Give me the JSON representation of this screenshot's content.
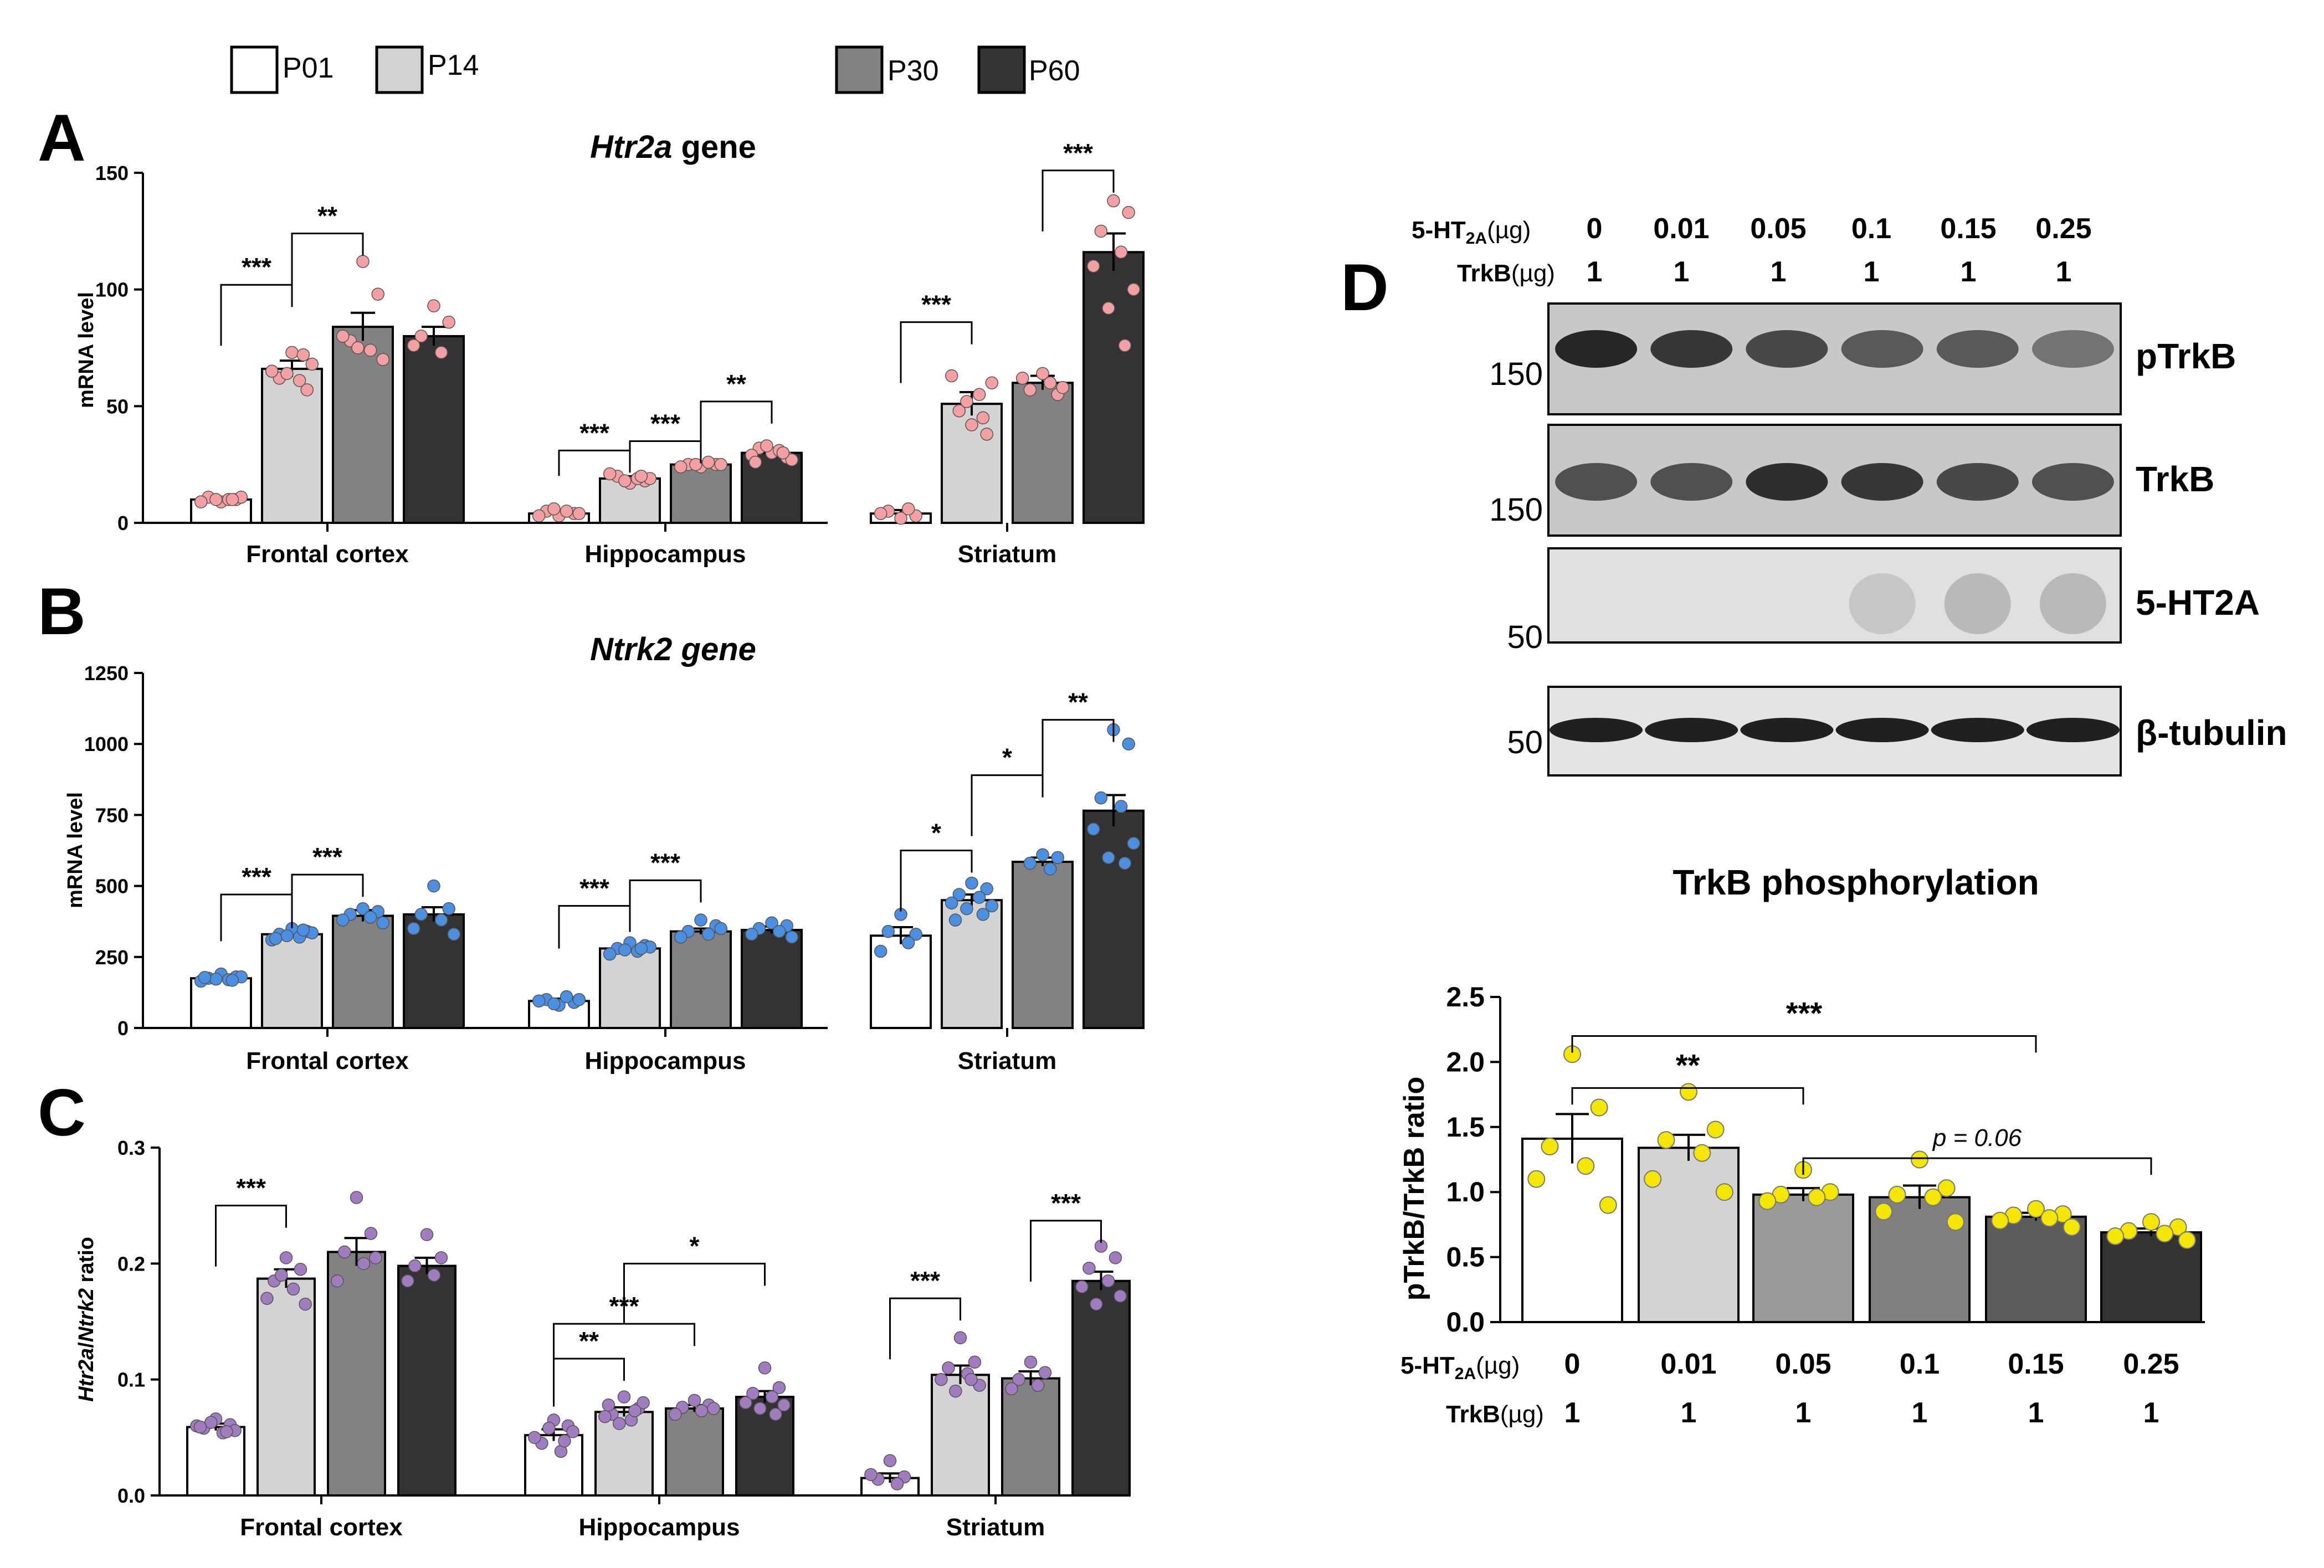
{
  "legend": {
    "groups": [
      {
        "label": "P01",
        "color": "#ffffff"
      },
      {
        "label": "P14",
        "color": "#d3d3d3"
      },
      {
        "label": "P30",
        "color": "#828282"
      },
      {
        "label": "P60",
        "color": "#333333"
      }
    ]
  },
  "chart_data": [
    {
      "panel": "A",
      "type": "bar",
      "title": "Htr2a gene",
      "title_italic": "Htr2a",
      "title_rest": " gene",
      "ylabel": "mRNA level",
      "ylim": [
        0,
        150
      ],
      "yticks": [
        0,
        50,
        100,
        150
      ],
      "dot_color": "#f4a0a3",
      "categories": [
        "Frontal cortex",
        "Hippocampus",
        "Striatum"
      ],
      "series": [
        {
          "name": "P01",
          "values": [
            10,
            4,
            4
          ],
          "errors": [
            1,
            1,
            1.5
          ],
          "points": [
            [
              9,
              10,
              11,
              10,
              9,
              11,
              10,
              10
            ],
            [
              3,
              4,
              5,
              5,
              3,
              4,
              6
            ],
            [
              2,
              3,
              5,
              6,
              4
            ]
          ]
        },
        {
          "name": "P14",
          "values": [
            66,
            19,
            51
          ],
          "errors": [
            3.5,
            1,
            5
          ],
          "points": [
            [
              73,
              57,
              62,
              61,
              65,
              68,
              64,
              72
            ],
            [
              17,
              18,
              20,
              19,
              21,
              19,
              18,
              20
            ],
            [
              42,
              38,
              48,
              55,
              63,
              60,
              52,
              45
            ]
          ]
        },
        {
          "name": "P30",
          "values": [
            84,
            25,
            60
          ],
          "errors": [
            6,
            0.5,
            3
          ],
          "points": [
            [
              112,
              98,
              78,
              74,
              80,
              70,
              75
            ],
            [
              24,
              25,
              25,
              26,
              24,
              25,
              25
            ],
            [
              64,
              55,
              57,
              60,
              62,
              58
            ]
          ]
        },
        {
          "name": "P60",
          "values": [
            80,
            30,
            116
          ],
          "errors": [
            4,
            1.5,
            8
          ],
          "points": [
            [
              93,
              86,
              80,
              73,
              76
            ],
            [
              30,
              28,
              32,
              31,
              29,
              27,
              33,
              30,
              26
            ],
            [
              138,
              133,
              125,
              116,
              110,
              100,
              92,
              76
            ]
          ]
        }
      ],
      "annotations": [
        {
          "text": "***",
          "from_category": 0,
          "from_group": 0,
          "to_category": 0,
          "to_group": 1,
          "y": 102
        },
        {
          "text": "**",
          "from_category": 0,
          "from_group": 1,
          "to_category": 0,
          "to_group": 2,
          "y": 124
        },
        {
          "text": "***",
          "from_category": 1,
          "from_group": 0,
          "to_category": 1,
          "to_group": 1,
          "y": 31
        },
        {
          "text": "***",
          "from_category": 1,
          "from_group": 1,
          "to_category": 1,
          "to_group": 2,
          "y": 35
        },
        {
          "text": "**",
          "from_category": 1,
          "from_group": 2,
          "to_category": 1,
          "to_group": 3,
          "y": 52
        },
        {
          "text": "***",
          "from_category": 2,
          "from_group": 0,
          "to_category": 2,
          "to_group": 1,
          "y": 86
        },
        {
          "text": "***",
          "from_category": 2,
          "from_group": 2,
          "to_category": 2,
          "to_group": 3,
          "y": 151
        }
      ]
    },
    {
      "panel": "B",
      "type": "bar",
      "title": "Ntrk2 gene",
      "title_italic": "Ntrk2 gene",
      "title_rest": "",
      "ylabel": "mRNA level",
      "ylim": [
        0,
        1250
      ],
      "yticks": [
        0,
        250,
        500,
        750,
        1000,
        1250
      ],
      "dot_color": "#4b8fe3",
      "categories": [
        "Frontal cortex",
        "Hippocampus",
        "Striatum"
      ],
      "series": [
        {
          "name": "P01",
          "values": [
            175,
            95,
            325
          ],
          "errors": [
            8,
            8,
            30
          ],
          "points": [
            [
              190,
              180,
              175,
              170,
              165,
              180,
              172,
              168,
              178
            ],
            [
              80,
              90,
              100,
              110,
              95,
              100,
              85
            ],
            [
              400,
              330,
              340,
              300,
              270
            ]
          ]
        },
        {
          "name": "P14",
          "values": [
            330,
            280,
            450
          ],
          "errors": [
            10,
            8,
            20
          ],
          "points": [
            [
              350,
              340,
              330,
              320,
              310,
              335,
              325,
              345,
              315
            ],
            [
              300,
              290,
              280,
              270,
              260,
              285,
              275,
              280
            ],
            [
              510,
              490,
              470,
              460,
              440,
              430,
              420,
              400,
              380
            ]
          ]
        },
        {
          "name": "P30",
          "values": [
            395,
            340,
            585
          ],
          "errors": [
            20,
            10,
            15
          ],
          "points": [
            [
              420,
              410,
              400,
              390,
              380,
              370
            ],
            [
              380,
              360,
              340,
              330,
              320,
              350
            ],
            [
              610,
              600,
              580,
              560
            ]
          ]
        },
        {
          "name": "P60",
          "values": [
            400,
            345,
            765
          ],
          "errors": [
            25,
            12,
            55
          ],
          "points": [
            [
              500,
              420,
              400,
              380,
              350,
              330
            ],
            [
              370,
              360,
              350,
              340,
              330,
              320
            ],
            [
              1050,
              1000,
              810,
              780,
              700,
              650,
              600,
              580
            ]
          ]
        }
      ],
      "annotations": [
        {
          "text": "***",
          "from_category": 0,
          "from_group": 0,
          "to_category": 0,
          "to_group": 1,
          "y": 470
        },
        {
          "text": "***",
          "from_category": 0,
          "from_group": 1,
          "to_category": 0,
          "to_group": 2,
          "y": 540
        },
        {
          "text": "***",
          "from_category": 1,
          "from_group": 0,
          "to_category": 1,
          "to_group": 1,
          "y": 430
        },
        {
          "text": "***",
          "from_category": 1,
          "from_group": 1,
          "to_category": 1,
          "to_group": 2,
          "y": 520
        },
        {
          "text": "*",
          "from_category": 2,
          "from_group": 0,
          "to_category": 2,
          "to_group": 1,
          "y": 625
        },
        {
          "text": "*",
          "from_category": 2,
          "from_group": 1,
          "to_category": 2,
          "to_group": 2,
          "y": 890
        },
        {
          "text": "**",
          "from_category": 2,
          "from_group": 2,
          "to_category": 2,
          "to_group": 3,
          "y": 1085
        }
      ]
    },
    {
      "panel": "C",
      "type": "bar",
      "title": "",
      "ylabel_italic_1": "Htr2a",
      "ylabel_sep": "/",
      "ylabel_italic_2": "Ntrk2",
      "ylabel_rest": " ratio",
      "ylim": [
        0,
        0.3
      ],
      "yticks": [
        "0.0",
        "0.1",
        "0.2",
        "0.3"
      ],
      "dot_color": "#a27cc0",
      "categories": [
        "Frontal cortex",
        "Hippocampus",
        "Striatum"
      ],
      "series": [
        {
          "name": "P01",
          "values": [
            0.059,
            0.052,
            0.015
          ],
          "errors": [
            0.003,
            0.005,
            0.004
          ],
          "points": [
            [
              0.066,
              0.061,
              0.058,
              0.054,
              0.06,
              0.056,
              0.063,
              0.055,
              0.059
            ],
            [
              0.065,
              0.06,
              0.045,
              0.038,
              0.05,
              0.055,
              0.058,
              0.047
            ],
            [
              0.03,
              0.016,
              0.014,
              0.01,
              0.018
            ]
          ]
        },
        {
          "name": "P14",
          "values": [
            0.187,
            0.072,
            0.104
          ],
          "errors": [
            0.008,
            0.004,
            0.008
          ],
          "points": [
            [
              0.205,
              0.195,
              0.185,
              0.178,
              0.17,
              0.165,
              0.19
            ],
            [
              0.085,
              0.075,
              0.07,
              0.065,
              0.068,
              0.08,
              0.062,
              0.073,
              0.078
            ],
            [
              0.136,
              0.115,
              0.11,
              0.105,
              0.1,
              0.095,
              0.09,
              0.1
            ]
          ]
        },
        {
          "name": "P30",
          "values": [
            0.21,
            0.075,
            0.101
          ],
          "errors": [
            0.012,
            0.003,
            0.006
          ],
          "points": [
            [
              0.257,
              0.226,
              0.21,
              0.2,
              0.185,
              0.205
            ],
            [
              0.082,
              0.078,
              0.076,
              0.073,
              0.07,
              0.075
            ],
            [
              0.115,
              0.106,
              0.1,
              0.095,
              0.092
            ]
          ]
        },
        {
          "name": "P60",
          "values": [
            0.198,
            0.085,
            0.185
          ],
          "errors": [
            0.007,
            0.005,
            0.008
          ],
          "points": [
            [
              0.225,
              0.205,
              0.198,
              0.19,
              0.185
            ],
            [
              0.11,
              0.093,
              0.088,
              0.085,
              0.08,
              0.078,
              0.075,
              0.07
            ],
            [
              0.215,
              0.205,
              0.196,
              0.185,
              0.18,
              0.172,
              0.165
            ]
          ]
        }
      ],
      "annotations": [
        {
          "text": "***",
          "from_category": 0,
          "from_group": 0,
          "to_category": 0,
          "to_group": 1,
          "y": 0.25
        },
        {
          "text": "**",
          "from_category": 1,
          "from_group": 0,
          "to_category": 1,
          "to_group": 1,
          "y": 0.118
        },
        {
          "text": "***",
          "from_category": 1,
          "from_group": 0,
          "to_category": 1,
          "to_group": 2,
          "y": 0.148
        },
        {
          "text": "*",
          "from_category": 1,
          "from_group": 1,
          "to_category": 1,
          "to_group": 3,
          "y": 0.2
        },
        {
          "text": "***",
          "from_category": 2,
          "from_group": 0,
          "to_category": 2,
          "to_group": 1,
          "y": 0.17
        },
        {
          "text": "***",
          "from_category": 2,
          "from_group": 2,
          "to_category": 2,
          "to_group": 3,
          "y": 0.237
        }
      ]
    },
    {
      "panel": "D",
      "type": "bar",
      "title": "TrkB phosphorylation",
      "ylabel": "pTrkB/TrkB ratio",
      "ylim": [
        0,
        2.5
      ],
      "yticks": [
        "0.0",
        "0.5",
        "1.0",
        "1.5",
        "2.0",
        "2.5"
      ],
      "dot_color": "#f5e600",
      "categories": [
        "0",
        "0.01",
        "0.05",
        "0.1",
        "0.15",
        "0.25"
      ],
      "colors": [
        "#ffffff",
        "#d3d3d3",
        "#9a9a9a",
        "#808080",
        "#5c5c5c",
        "#333333"
      ],
      "values": [
        1.41,
        1.34,
        0.98,
        0.96,
        0.81,
        0.69
      ],
      "errors": [
        0.19,
        0.1,
        0.05,
        0.09,
        0.03,
        0.03
      ],
      "points": [
        [
          2.06,
          1.65,
          1.35,
          1.2,
          1.1,
          0.9
        ],
        [
          1.77,
          1.48,
          1.4,
          1.3,
          1.1,
          1.0
        ],
        [
          1.17,
          1.0,
          0.98,
          0.96,
          0.93
        ],
        [
          1.25,
          1.03,
          0.98,
          0.96,
          0.85,
          0.77
        ],
        [
          0.87,
          0.83,
          0.82,
          0.8,
          0.78,
          0.73
        ],
        [
          0.77,
          0.73,
          0.7,
          0.68,
          0.66,
          0.63
        ]
      ],
      "annotations": [
        {
          "text": "***",
          "from": 0,
          "to": 4,
          "y": 2.2
        },
        {
          "text": "**",
          "from": 0,
          "to": 2,
          "y": 1.8
        },
        {
          "text": "p = 0.06",
          "from": 2,
          "to": 5,
          "y": 1.26,
          "italic": true
        }
      ],
      "row_label_1": "5-HT",
      "row_label_1_sub": "2A",
      "row_label_unit": "(µg)",
      "row_label_2": "TrkB",
      "trkb_amounts": [
        "1",
        "1",
        "1",
        "1",
        "1",
        "1"
      ]
    }
  ],
  "panel_labels": {
    "a": "A",
    "b": "B",
    "c": "C",
    "d": "D"
  },
  "blot": {
    "header_row_1": {
      "label": "5-HT",
      "sub": "2A",
      "unit": "(µg)",
      "values": [
        "0",
        "0.01",
        "0.05",
        "0.1",
        "0.15",
        "0.25"
      ]
    },
    "header_row_2": {
      "label": "TrkB",
      "unit": "(µg)",
      "values": [
        "1",
        "1",
        "1",
        "1",
        "1",
        "1"
      ]
    },
    "strips": [
      {
        "name": "pTrkB",
        "marker": "150",
        "intensity": [
          0.95,
          0.85,
          0.75,
          0.65,
          0.65,
          0.5
        ]
      },
      {
        "name": "TrkB",
        "marker": "150",
        "intensity": [
          0.7,
          0.7,
          0.9,
          0.85,
          0.75,
          0.7
        ]
      },
      {
        "name": "5-HT2A",
        "marker": "50",
        "intensity": [
          0,
          0,
          0,
          0.12,
          0.25,
          0.25
        ]
      },
      {
        "name": "β-tubulin",
        "marker": "50",
        "intensity": [
          1,
          1,
          1,
          1,
          1,
          1
        ]
      }
    ]
  }
}
